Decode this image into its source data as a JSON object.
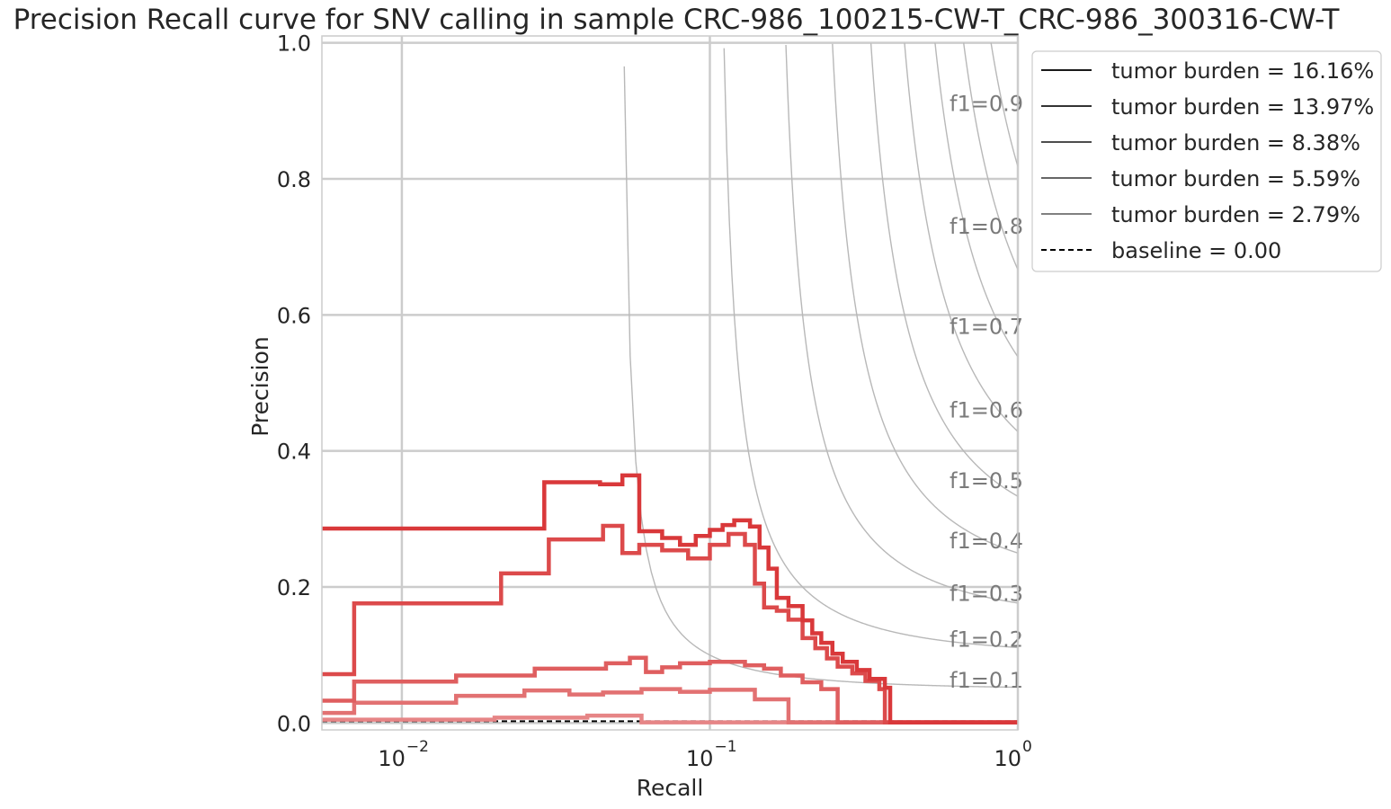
{
  "chart_data": {
    "type": "line",
    "title": "Precision Recall curve for SNV calling in sample CRC-986_100215-CW-T_CRC-986_300316-CW-T",
    "xlabel": "Recall",
    "ylabel": "Precision",
    "xscale": "log",
    "xlim": [
      0.0055,
      1.0
    ],
    "ylim": [
      -0.01,
      1.01
    ],
    "x_ticks": [
      {
        "value": 0.01,
        "base": "10",
        "exp": "−2"
      },
      {
        "value": 0.1,
        "base": "10",
        "exp": "−1"
      },
      {
        "value": 1.0,
        "base": "10",
        "exp": "0"
      }
    ],
    "y_ticks": [
      {
        "value": 0.0,
        "label": "0.0"
      },
      {
        "value": 0.2,
        "label": "0.2"
      },
      {
        "value": 0.4,
        "label": "0.4"
      },
      {
        "value": 0.6,
        "label": "0.6"
      },
      {
        "value": 0.8,
        "label": "0.8"
      },
      {
        "value": 1.0,
        "label": "1.0"
      }
    ],
    "grid": true,
    "legend_position": "outside top-right",
    "iso_f1": [
      {
        "f1": 0.1,
        "label": "f1=0.1"
      },
      {
        "f1": 0.2,
        "label": "f1=0.2"
      },
      {
        "f1": 0.3,
        "label": "f1=0.3"
      },
      {
        "f1": 0.4,
        "label": "f1=0.4"
      },
      {
        "f1": 0.5,
        "label": "f1=0.5"
      },
      {
        "f1": 0.6,
        "label": "f1=0.6"
      },
      {
        "f1": 0.7,
        "label": "f1=0.7"
      },
      {
        "f1": 0.8,
        "label": "f1=0.8"
      },
      {
        "f1": 0.9,
        "label": "f1=0.9"
      }
    ],
    "series": [
      {
        "name": "tumor burden = 16.16%",
        "color": "#d9383a",
        "legend_color": "#1a1a1a",
        "points": [
          [
            0.0055,
            0.286
          ],
          [
            0.029,
            0.286
          ],
          [
            0.029,
            0.354
          ],
          [
            0.044,
            0.354
          ],
          [
            0.044,
            0.351
          ],
          [
            0.052,
            0.351
          ],
          [
            0.052,
            0.364
          ],
          [
            0.059,
            0.364
          ],
          [
            0.059,
            0.282
          ],
          [
            0.07,
            0.282
          ],
          [
            0.07,
            0.272
          ],
          [
            0.08,
            0.272
          ],
          [
            0.08,
            0.262
          ],
          [
            0.09,
            0.262
          ],
          [
            0.09,
            0.275
          ],
          [
            0.1,
            0.275
          ],
          [
            0.1,
            0.284
          ],
          [
            0.11,
            0.284
          ],
          [
            0.11,
            0.291
          ],
          [
            0.12,
            0.291
          ],
          [
            0.12,
            0.298
          ],
          [
            0.135,
            0.298
          ],
          [
            0.135,
            0.289
          ],
          [
            0.145,
            0.289
          ],
          [
            0.145,
            0.258
          ],
          [
            0.155,
            0.258
          ],
          [
            0.155,
            0.227
          ],
          [
            0.165,
            0.227
          ],
          [
            0.165,
            0.184
          ],
          [
            0.18,
            0.184
          ],
          [
            0.18,
            0.172
          ],
          [
            0.2,
            0.172
          ],
          [
            0.2,
            0.151
          ],
          [
            0.215,
            0.151
          ],
          [
            0.215,
            0.132
          ],
          [
            0.23,
            0.132
          ],
          [
            0.23,
            0.118
          ],
          [
            0.25,
            0.118
          ],
          [
            0.25,
            0.102
          ],
          [
            0.27,
            0.102
          ],
          [
            0.27,
            0.09
          ],
          [
            0.3,
            0.09
          ],
          [
            0.3,
            0.078
          ],
          [
            0.33,
            0.078
          ],
          [
            0.33,
            0.065
          ],
          [
            0.37,
            0.065
          ],
          [
            0.37,
            0.052
          ],
          [
            0.385,
            0.052
          ],
          [
            0.385,
            0.001
          ],
          [
            1.0,
            0.001
          ]
        ]
      },
      {
        "name": "tumor burden = 13.97%",
        "color": "#dc4a4b",
        "legend_color": "#333333",
        "points": [
          [
            0.0055,
            0.072
          ],
          [
            0.007,
            0.072
          ],
          [
            0.007,
            0.176
          ],
          [
            0.021,
            0.176
          ],
          [
            0.021,
            0.22
          ],
          [
            0.03,
            0.22
          ],
          [
            0.03,
            0.27
          ],
          [
            0.045,
            0.27
          ],
          [
            0.045,
            0.29
          ],
          [
            0.052,
            0.29
          ],
          [
            0.052,
            0.25
          ],
          [
            0.059,
            0.25
          ],
          [
            0.059,
            0.262
          ],
          [
            0.07,
            0.262
          ],
          [
            0.07,
            0.254
          ],
          [
            0.085,
            0.254
          ],
          [
            0.085,
            0.242
          ],
          [
            0.1,
            0.242
          ],
          [
            0.1,
            0.262
          ],
          [
            0.115,
            0.262
          ],
          [
            0.115,
            0.278
          ],
          [
            0.13,
            0.278
          ],
          [
            0.13,
            0.262
          ],
          [
            0.14,
            0.262
          ],
          [
            0.14,
            0.205
          ],
          [
            0.15,
            0.205
          ],
          [
            0.15,
            0.17
          ],
          [
            0.165,
            0.17
          ],
          [
            0.165,
            0.165
          ],
          [
            0.18,
            0.165
          ],
          [
            0.18,
            0.152
          ],
          [
            0.2,
            0.152
          ],
          [
            0.2,
            0.125
          ],
          [
            0.22,
            0.125
          ],
          [
            0.22,
            0.11
          ],
          [
            0.24,
            0.11
          ],
          [
            0.24,
            0.095
          ],
          [
            0.26,
            0.095
          ],
          [
            0.26,
            0.083
          ],
          [
            0.29,
            0.083
          ],
          [
            0.29,
            0.073
          ],
          [
            0.32,
            0.073
          ],
          [
            0.32,
            0.062
          ],
          [
            0.355,
            0.062
          ],
          [
            0.355,
            0.05
          ],
          [
            0.37,
            0.05
          ],
          [
            0.37,
            0.001
          ],
          [
            1.0,
            0.001
          ]
        ]
      },
      {
        "name": "tumor burden = 8.38%",
        "color": "#df5e5f",
        "legend_color": "#4d4d4d",
        "points": [
          [
            0.0055,
            0.033
          ],
          [
            0.007,
            0.033
          ],
          [
            0.007,
            0.061
          ],
          [
            0.015,
            0.061
          ],
          [
            0.015,
            0.07
          ],
          [
            0.027,
            0.07
          ],
          [
            0.027,
            0.08
          ],
          [
            0.046,
            0.08
          ],
          [
            0.046,
            0.088
          ],
          [
            0.055,
            0.088
          ],
          [
            0.055,
            0.096
          ],
          [
            0.062,
            0.096
          ],
          [
            0.062,
            0.075
          ],
          [
            0.07,
            0.075
          ],
          [
            0.07,
            0.082
          ],
          [
            0.08,
            0.082
          ],
          [
            0.08,
            0.088
          ],
          [
            0.1,
            0.088
          ],
          [
            0.1,
            0.09
          ],
          [
            0.13,
            0.09
          ],
          [
            0.13,
            0.085
          ],
          [
            0.15,
            0.085
          ],
          [
            0.15,
            0.08
          ],
          [
            0.17,
            0.08
          ],
          [
            0.17,
            0.07
          ],
          [
            0.2,
            0.07
          ],
          [
            0.2,
            0.06
          ],
          [
            0.23,
            0.06
          ],
          [
            0.23,
            0.05
          ],
          [
            0.26,
            0.05
          ],
          [
            0.26,
            0.001
          ],
          [
            1.0,
            0.001
          ]
        ]
      },
      {
        "name": "tumor burden = 5.59%",
        "color": "#e27172",
        "legend_color": "#666666",
        "points": [
          [
            0.0055,
            0.015
          ],
          [
            0.007,
            0.015
          ],
          [
            0.007,
            0.03
          ],
          [
            0.015,
            0.03
          ],
          [
            0.015,
            0.04
          ],
          [
            0.025,
            0.04
          ],
          [
            0.025,
            0.048
          ],
          [
            0.035,
            0.048
          ],
          [
            0.035,
            0.042
          ],
          [
            0.045,
            0.042
          ],
          [
            0.045,
            0.045
          ],
          [
            0.06,
            0.045
          ],
          [
            0.06,
            0.05
          ],
          [
            0.08,
            0.05
          ],
          [
            0.08,
            0.046
          ],
          [
            0.1,
            0.046
          ],
          [
            0.1,
            0.049
          ],
          [
            0.14,
            0.049
          ],
          [
            0.14,
            0.035
          ],
          [
            0.18,
            0.035
          ],
          [
            0.18,
            0.001
          ],
          [
            1.0,
            0.001
          ]
        ]
      },
      {
        "name": "tumor burden = 2.79%",
        "color": "#e68586",
        "legend_color": "#808080",
        "points": [
          [
            0.0055,
            0.005
          ],
          [
            0.02,
            0.005
          ],
          [
            0.02,
            0.008
          ],
          [
            0.04,
            0.008
          ],
          [
            0.04,
            0.011
          ],
          [
            0.06,
            0.011
          ],
          [
            0.06,
            0.001
          ],
          [
            1.0,
            0.001
          ]
        ]
      }
    ],
    "baseline": {
      "name": "baseline = 0.00",
      "value": 0.0,
      "color": "#000000"
    }
  }
}
